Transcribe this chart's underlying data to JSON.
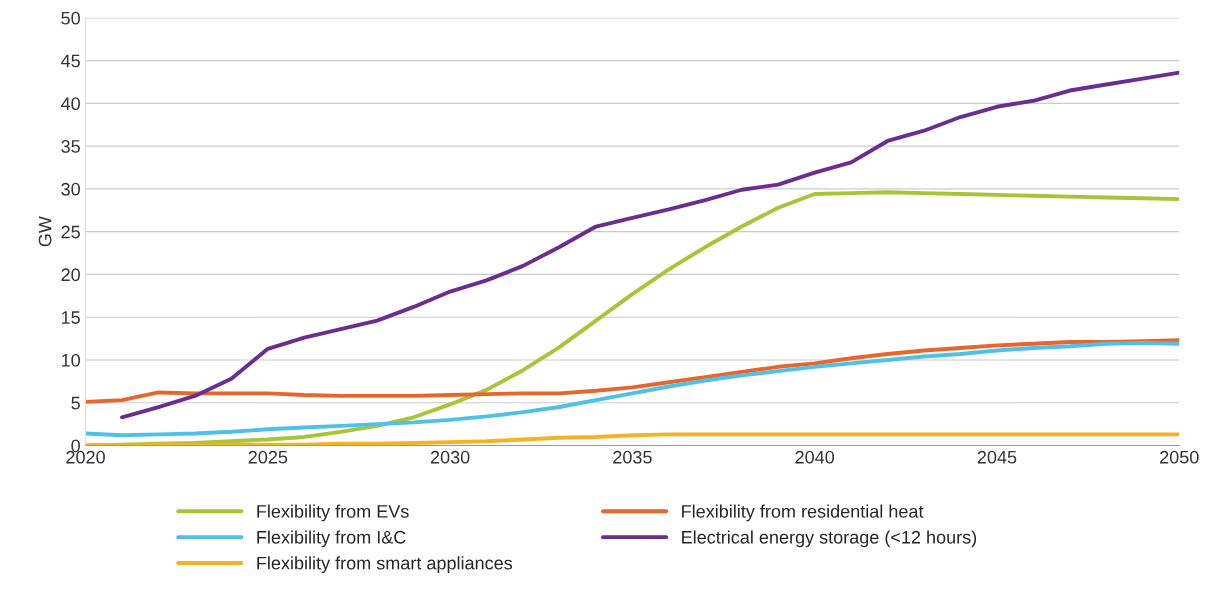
{
  "chart_data": {
    "type": "line",
    "ylabel": "GW",
    "x": [
      2020,
      2021,
      2022,
      2023,
      2024,
      2025,
      2026,
      2027,
      2028,
      2029,
      2030,
      2031,
      2032,
      2033,
      2034,
      2035,
      2036,
      2037,
      2038,
      2039,
      2040,
      2041,
      2042,
      2043,
      2044,
      2045,
      2046,
      2047,
      2048,
      2049,
      2050
    ],
    "series": [
      {
        "name": "Flexibility from EVs",
        "color": "#a8c536",
        "values": [
          0,
          0.1,
          0.2,
          0.3,
          0.5,
          0.7,
          1.0,
          1.6,
          2.3,
          3.3,
          4.8,
          6.5,
          8.8,
          11.5,
          14.6,
          17.7,
          20.6,
          23.2,
          25.6,
          27.8,
          29.4,
          29.5,
          29.6,
          29.5,
          29.4,
          29.3,
          29.2,
          29.1,
          29.0,
          28.9,
          28.8
        ]
      },
      {
        "name": "Flexibility from residential heat",
        "color": "#e8652b",
        "values": [
          5.1,
          5.3,
          6.2,
          6.1,
          6.1,
          6.1,
          5.9,
          5.8,
          5.8,
          5.8,
          5.9,
          6.0,
          6.1,
          6.1,
          6.4,
          6.8,
          7.4,
          8.0,
          8.6,
          9.2,
          9.6,
          10.2,
          10.7,
          11.1,
          11.4,
          11.7,
          11.9,
          12.1,
          12.1,
          12.2,
          12.3
        ]
      },
      {
        "name": "Flexibility from I&C",
        "color": "#4fc1e9",
        "values": [
          1.4,
          1.2,
          1.3,
          1.4,
          1.6,
          1.9,
          2.1,
          2.3,
          2.5,
          2.7,
          3.0,
          3.4,
          3.9,
          4.5,
          5.3,
          6.1,
          6.9,
          7.6,
          8.2,
          8.7,
          9.2,
          9.6,
          10.0,
          10.4,
          10.7,
          11.1,
          11.4,
          11.6,
          11.9,
          12.0,
          11.9
        ]
      },
      {
        "name": "Electrical energy storage (<12 hours)",
        "color": "#6a2d91",
        "values": [
          null,
          3.3,
          4.5,
          5.8,
          7.8,
          11.3,
          12.6,
          13.6,
          14.6,
          16.2,
          18.0,
          19.3,
          21.0,
          23.2,
          25.6,
          26.6,
          27.6,
          28.7,
          29.9,
          30.5,
          31.9,
          33.1,
          35.6,
          36.8,
          38.4,
          39.6,
          40.3,
          41.5,
          42.2,
          42.9,
          43.6
        ]
      },
      {
        "name": "Flexibility from smart appliances",
        "color": "#f5b323",
        "values": [
          0,
          0,
          0.1,
          0.1,
          0.1,
          0.1,
          0.1,
          0.2,
          0.2,
          0.3,
          0.4,
          0.5,
          0.7,
          0.9,
          1.0,
          1.2,
          1.3,
          1.3,
          1.3,
          1.3,
          1.3,
          1.3,
          1.3,
          1.3,
          1.3,
          1.3,
          1.3,
          1.3,
          1.3,
          1.3,
          1.3
        ]
      }
    ],
    "xlim": [
      2020,
      2050
    ],
    "xticks": [
      2020,
      2025,
      2030,
      2035,
      2040,
      2045,
      2050
    ],
    "ylim": [
      0,
      50
    ],
    "yticks": [
      0,
      5,
      10,
      15,
      20,
      25,
      30,
      35,
      40,
      45,
      50
    ],
    "grid": "y",
    "legend": "bottom",
    "marker": "none",
    "line_style": "solid"
  }
}
